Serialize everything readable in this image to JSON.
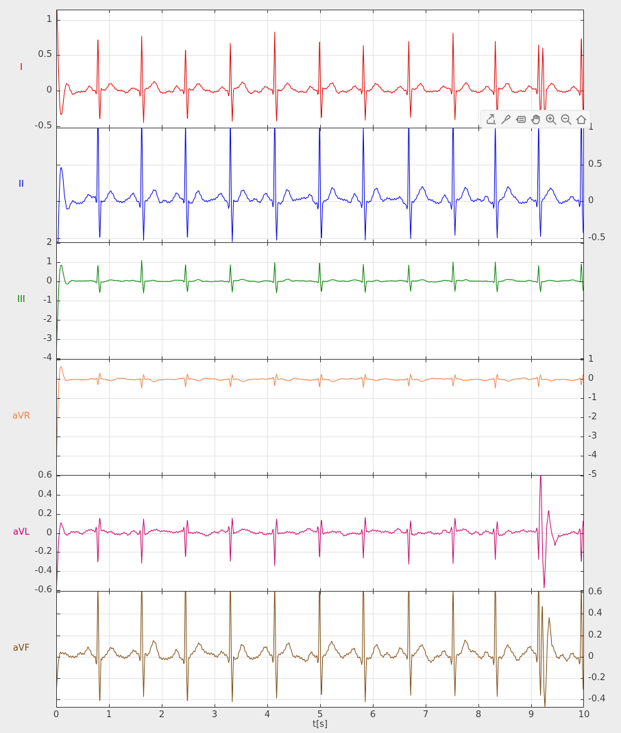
{
  "figure": {
    "background": "#ededed",
    "axes_background": "#ffffff",
    "grid_color": "#e3e3e3",
    "axis_color": "#3c3c3c",
    "tick_label_color": "#3d3d3d",
    "xlabel": "t[s]"
  },
  "toolbar": {
    "icons": [
      {
        "name": "export-icon",
        "label": "Export"
      },
      {
        "name": "brush-icon",
        "label": "Brush/Select Data"
      },
      {
        "name": "datatips-icon",
        "label": "Data Tips"
      },
      {
        "name": "pan-icon",
        "label": "Pan"
      },
      {
        "name": "zoom-in-icon",
        "label": "Zoom In"
      },
      {
        "name": "zoom-out-icon",
        "label": "Zoom Out"
      },
      {
        "name": "home-icon",
        "label": "Restore View"
      }
    ]
  },
  "chart_data": {
    "type": "line",
    "title": "",
    "xlabel": "t[s]",
    "x_range": [
      0,
      10
    ],
    "x_ticks": [
      0,
      1,
      2,
      3,
      4,
      5,
      6,
      7,
      8,
      9,
      10
    ],
    "grid": true,
    "legend": "none",
    "description": "Six stacked ECG lead strips (10 s record), one axes per lead, shared time axis, y-tick labels alternating left/right side",
    "beat_times_s": [
      0.79,
      1.62,
      2.45,
      3.3,
      4.14,
      4.99,
      5.82,
      6.68,
      7.52,
      8.32,
      9.14,
      9.95
    ],
    "leads": [
      {
        "label": "I",
        "color": "#e00000",
        "tick_side": "left",
        "ylim": [
          -0.52,
          1.14
        ],
        "yticks": [
          1,
          0.5,
          0,
          -0.5
        ],
        "noise": 0.042,
        "seed": 11,
        "qrs": {
          "q": -0.07,
          "r": 0.7,
          "s": -0.42,
          "t": 0.1,
          "p": 0.05
        },
        "transient": {
          "amp": 1.6,
          "tau": 0.07,
          "freq": 4.5
        },
        "artifacts": [
          {
            "t": 9.22,
            "amp": 0.6,
            "w": 0.025
          },
          {
            "t": 9.26,
            "amp": -0.42,
            "w": 0.03
          }
        ]
      },
      {
        "label": "II",
        "color": "#0000e0",
        "tick_side": "right",
        "ylim": [
          -0.56,
          1.0
        ],
        "yticks": [
          1,
          0.5,
          0,
          -0.5
        ],
        "noise": 0.055,
        "seed": 23,
        "qrs": {
          "q": -0.08,
          "r": 1.25,
          "s": -0.5,
          "t": 0.16,
          "p": 0.08
        },
        "transient": {
          "amp": -1.9,
          "tau": 0.07,
          "freq": 4.5
        },
        "artifacts": []
      },
      {
        "label": "III",
        "color": "#007f00",
        "tick_side": "left",
        "ylim": [
          -4.05,
          2.03
        ],
        "yticks": [
          2,
          1,
          0,
          -1,
          -2,
          -3,
          -4
        ],
        "noise": 0.05,
        "seed": 37,
        "qrs": {
          "q": -0.06,
          "r": 0.95,
          "s": -0.55,
          "t": 0.07,
          "p": 0.04
        },
        "transient": {
          "amp": -3.9,
          "tau": 0.065,
          "freq": 4.5
        },
        "artifacts": []
      },
      {
        "label": "aVR",
        "color": "#ef8349",
        "tick_side": "right",
        "ylim": [
          -5.0,
          1.05
        ],
        "yticks": [
          1,
          0,
          -1,
          -2,
          -3,
          -4,
          -5
        ],
        "noise": 0.06,
        "seed": 51,
        "qrs": {
          "q": 0.06,
          "r": -0.4,
          "s": 0.25,
          "t": -0.1,
          "p": -0.04
        },
        "transient": {
          "amp": -4.8,
          "tau": 0.05,
          "freq": 4.5
        },
        "artifacts": []
      },
      {
        "label": "aVL",
        "color": "#c60069",
        "tick_side": "left",
        "ylim": [
          -0.605,
          0.605
        ],
        "yticks": [
          0.6,
          0.4,
          0.2,
          0,
          -0.2,
          -0.4,
          -0.6
        ],
        "noise": 0.034,
        "seed": 67,
        "qrs": {
          "q": 0.05,
          "r": -0.3,
          "s": 0.14,
          "t": 0.02,
          "p": 0.02
        },
        "transient": {
          "amp": -0.63,
          "tau": 0.06,
          "freq": 4.5
        },
        "artifacts": [
          {
            "t": 9.18,
            "amp": 0.52,
            "w": 0.04
          },
          {
            "t": 9.245,
            "amp": -0.6,
            "w": 0.05
          },
          {
            "t": 9.33,
            "amp": 0.22,
            "w": 0.05
          },
          {
            "t": 9.45,
            "amp": -0.15,
            "w": 0.07
          }
        ]
      },
      {
        "label": "aVF",
        "color": "#7e4b10",
        "tick_side": "right",
        "ylim": [
          -0.47,
          0.615
        ],
        "yticks": [
          0.6,
          0.4,
          0.2,
          0,
          -0.2,
          -0.4
        ],
        "noise": 0.05,
        "seed": 83,
        "qrs": {
          "q": -0.06,
          "r": 0.85,
          "s": -0.38,
          "t": 0.12,
          "p": 0.06
        },
        "transient": {
          "amp": -0.35,
          "tau": 0.05,
          "freq": 4.5
        },
        "artifacts": [
          {
            "t": 9.21,
            "amp": 0.5,
            "w": 0.03
          },
          {
            "t": 9.26,
            "amp": -0.5,
            "w": 0.045
          },
          {
            "t": 9.34,
            "amp": 0.28,
            "w": 0.05
          }
        ]
      }
    ]
  }
}
